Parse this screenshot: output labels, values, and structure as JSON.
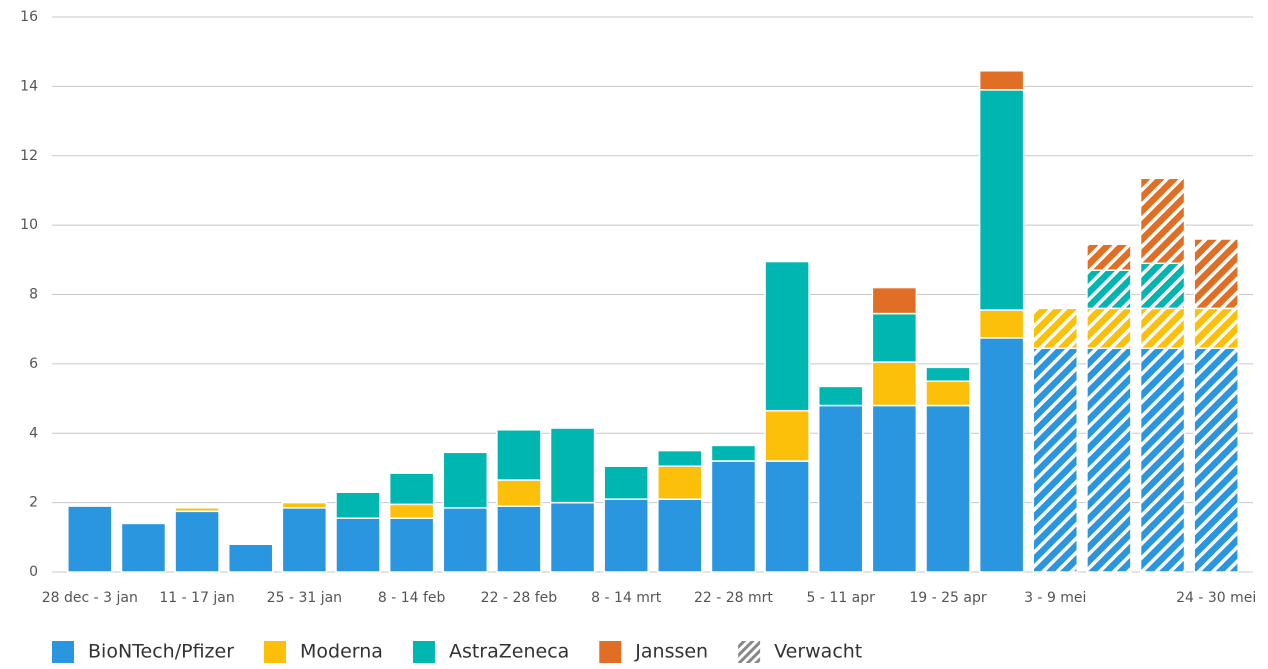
{
  "chart_data": {
    "type": "stacked_bar",
    "categories": [
      "28 dec - 3 jan",
      null,
      "11 - 17 jan",
      null,
      "25 - 31 jan",
      null,
      "8 - 14 feb",
      null,
      "22 - 28 feb",
      null,
      "8 - 14 mrt",
      null,
      "22 - 28 mrt",
      null,
      "5 - 11 apr",
      null,
      "19 - 25 apr",
      null,
      "3 - 9 mei",
      null,
      null,
      "24 - 30 mei"
    ],
    "series": [
      {
        "name": "BioNTech/Pfizer",
        "color": "#2a96e0",
        "values": [
          1.9,
          1.4,
          1.75,
          0.8,
          1.85,
          1.55,
          1.55,
          1.85,
          1.9,
          2.0,
          2.1,
          2.1,
          3.2,
          3.2,
          4.8,
          4.8,
          4.8,
          6.75,
          6.45,
          6.45,
          6.45,
          6.45
        ]
      },
      {
        "name": "Moderna",
        "color": "#fcbf0a",
        "values": [
          0,
          0,
          0.1,
          0,
          0.15,
          0,
          0.4,
          0,
          0.75,
          0,
          0,
          0.95,
          0,
          1.45,
          0,
          1.25,
          0.7,
          0.8,
          1.15,
          1.15,
          1.15,
          1.15
        ]
      },
      {
        "name": "AstraZeneca",
        "color": "#00b6b0",
        "values": [
          0,
          0,
          0,
          0,
          0,
          0.75,
          0.9,
          1.6,
          1.45,
          2.15,
          0.95,
          0.45,
          0.45,
          4.3,
          0.55,
          1.4,
          0.4,
          6.35,
          0,
          1.1,
          1.3,
          0
        ]
      },
      {
        "name": "Janssen",
        "color": "#e06f25",
        "values": [
          0,
          0,
          0,
          0,
          0,
          0,
          0,
          0,
          0,
          0,
          0,
          0,
          0,
          0,
          0,
          0.75,
          0,
          0.55,
          0,
          0.75,
          2.45,
          2.0
        ]
      }
    ],
    "forecast": {
      "label": "Verwacht",
      "start": 18
    },
    "ylim": [
      0,
      16
    ],
    "yticks": [
      0,
      2,
      4,
      6,
      8,
      10,
      12,
      14,
      16
    ],
    "grid": true,
    "legend": "bottom"
  }
}
